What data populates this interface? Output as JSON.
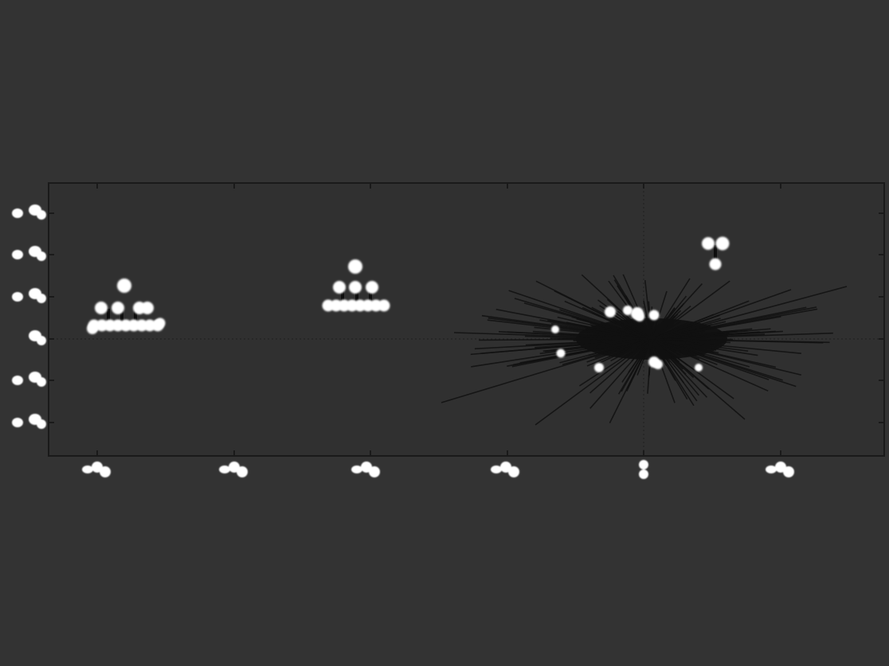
{
  "chart_data": {
    "type": "scatter",
    "title": "",
    "xlabel": "",
    "ylabel": "",
    "x_tick_count": 6,
    "y_tick_count": 6,
    "tick_label_style": "unreadable white blobs",
    "grid": false,
    "zero_lines": "dotted",
    "groups": [
      {
        "tick_index": 0,
        "shape": "stacked-cluster"
      },
      {
        "tick_index": 2,
        "shape": "stacked-cluster"
      },
      {
        "tick_index": 4,
        "shape": "burst-of-lines"
      },
      {
        "tick_index": 4.5,
        "shape": "small-cluster"
      }
    ]
  },
  "colors": {
    "background": "#333333",
    "plot_area": "#303030",
    "frame": "#1a1a1a",
    "marker": "#ffffff",
    "lines": "#111111"
  }
}
